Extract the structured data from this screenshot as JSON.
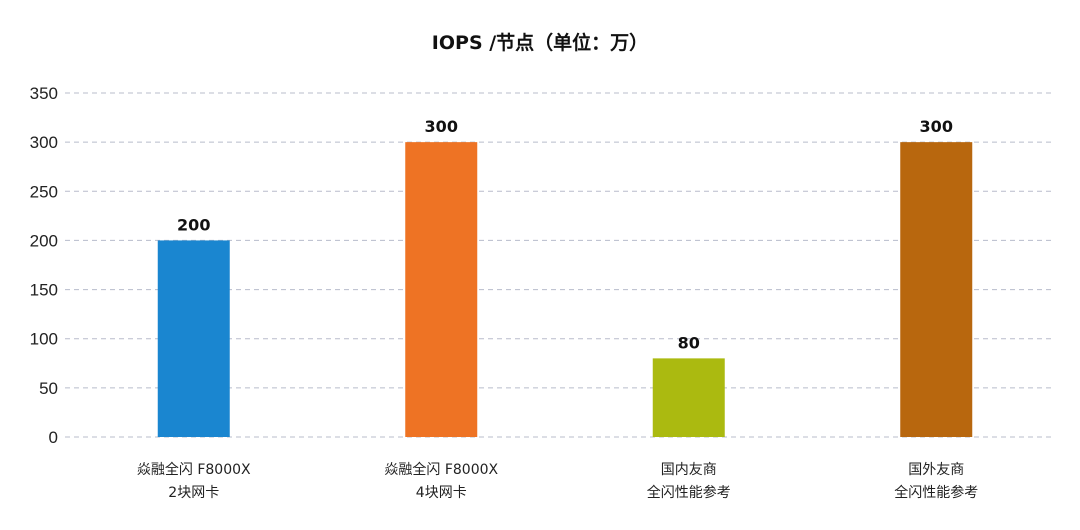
{
  "chart_data": {
    "type": "bar",
    "title": "IOPS /节点（单位：万）",
    "xlabel": "",
    "ylabel": "",
    "categories": [
      [
        "焱融全闪 F8000X",
        "2块网卡"
      ],
      [
        "焱融全闪 F8000X",
        "4块网卡"
      ],
      [
        "国内友商",
        "全闪性能参考"
      ],
      [
        "国外友商",
        "全闪性能参考"
      ]
    ],
    "values": [
      200,
      300,
      80,
      300
    ],
    "colors": [
      "#1a86d0",
      "#ee7324",
      "#abba10",
      "#b8670e"
    ],
    "ylim": [
      0,
      350
    ],
    "yticks": [
      0,
      50,
      100,
      150,
      200,
      250,
      300,
      350
    ],
    "grid": true,
    "grid_style": "dashed",
    "grid_color": "#b8bccb",
    "legend": "none"
  }
}
